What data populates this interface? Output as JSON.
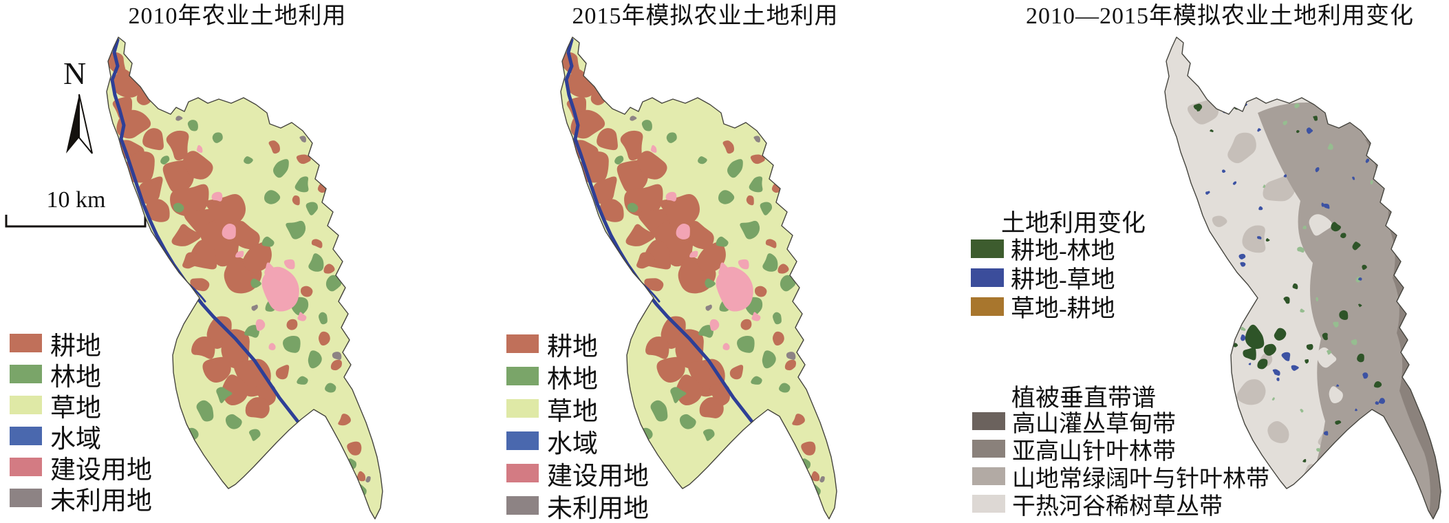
{
  "figure": {
    "background": "#ffffff"
  },
  "panels": [
    {
      "title": "2010年农业土地利用"
    },
    {
      "title": "2015年模拟农业土地利用"
    },
    {
      "title": "2010—2015年模拟农业土地利用变化"
    }
  ],
  "north_arrow": {
    "label": "N"
  },
  "scale_bar": {
    "label": "10 km"
  },
  "landuse_legend": {
    "items": [
      {
        "label": "耕地",
        "color": "#c0705a"
      },
      {
        "label": "林地",
        "color": "#7aa569"
      },
      {
        "label": "草地",
        "color": "#dfe9a6"
      },
      {
        "label": "水域",
        "color": "#4a68ae"
      },
      {
        "label": "建设用地",
        "color": "#d37b83"
      },
      {
        "label": "未利用地",
        "color": "#8d8384"
      }
    ]
  },
  "change_legend": {
    "title": "土地利用变化",
    "items": [
      {
        "label": "耕地-林地",
        "color": "#3d5c2e"
      },
      {
        "label": "耕地-草地",
        "color": "#3b4d9b"
      },
      {
        "label": "草地-耕地",
        "color": "#a8762d"
      }
    ]
  },
  "vegetation_legend": {
    "title": "植被垂直带谱",
    "items": [
      {
        "label": "高山灌丛草甸带",
        "color": "#6b625d"
      },
      {
        "label": "亚高山针叶林带",
        "color": "#8a817b"
      },
      {
        "label": "山地常绿阔叶与针叶林带",
        "color": "#b2aaa4"
      },
      {
        "label": "干热河谷稀树草丛带",
        "color": "#ddd8d4"
      }
    ]
  },
  "map_colors": {
    "cropland": "#bf6f57",
    "forest": "#78a366",
    "grassland": "#e3ebae",
    "water": "#4a68ae",
    "river": "#2e3f96",
    "construction": "#f2a4b4",
    "unused": "#8d8384",
    "change_forest": "#2e5428",
    "change_grass": "#3c52a3",
    "change_crop": "#a8762d",
    "change_green_light": "#96bd90",
    "zone_alpine_shrub": "#6b625d",
    "zone_subalpine": "#8b827c",
    "zone_montane": "#a79f99",
    "zone_montane_light": "#c6bfb9",
    "zone_valley": "#e2ded9"
  }
}
